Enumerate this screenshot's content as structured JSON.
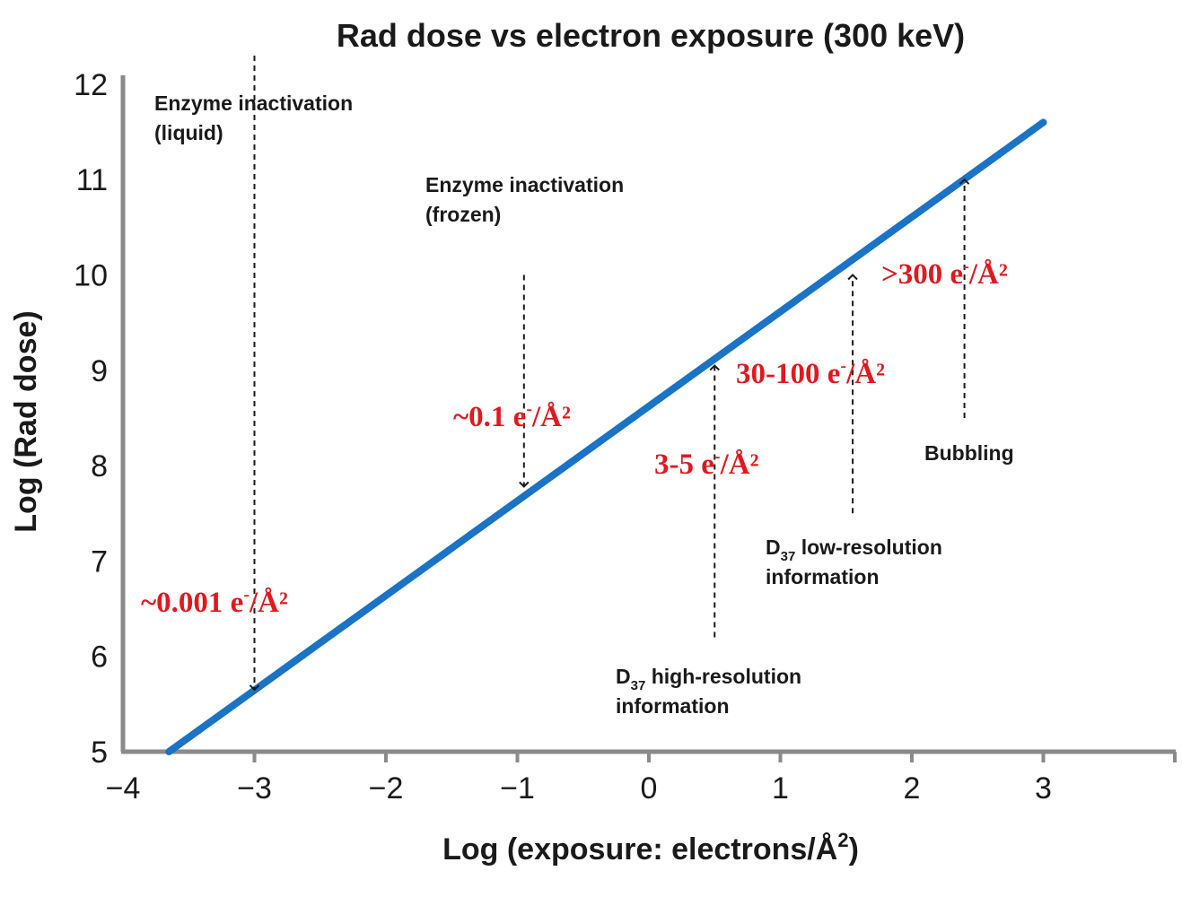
{
  "chart_data": {
    "type": "line",
    "title": "Rad dose vs electron exposure (300 keV)",
    "xlabel": "Log (exposure: electrons/Å",
    "xlabel_sup": "2",
    "xlabel_end": ")",
    "ylabel": "Log (Rad dose)",
    "xlim": [
      -4,
      4
    ],
    "ylim": [
      5,
      12
    ],
    "xticks": [
      -4,
      -3,
      -2,
      -1,
      0,
      1,
      2,
      3
    ],
    "xtick_labels": [
      "−4",
      "−3",
      "−2",
      "−1",
      "0",
      "1",
      "2",
      "3"
    ],
    "yticks": [
      5,
      6,
      7,
      8,
      9,
      10,
      11,
      12
    ],
    "ytick_labels": [
      "5",
      "6",
      "7",
      "8",
      "9",
      "10",
      "11",
      "12"
    ],
    "grid": false,
    "series": [
      {
        "x": [
          -3.65,
          3.0
        ],
        "y": [
          5.0,
          11.6
        ],
        "color": "#1a73c4"
      }
    ],
    "arrows": [
      {
        "x": -3.0,
        "y_from": 12.3,
        "y_to": 5.65
      },
      {
        "x": -0.95,
        "y_from": 10.0,
        "y_to": 7.78
      },
      {
        "x": 0.5,
        "y_from": 6.2,
        "y_to": 9.05
      },
      {
        "x": 1.55,
        "y_from": 7.5,
        "y_to": 10.0
      },
      {
        "x": 2.4,
        "y_from": 8.5,
        "y_to": 11.0
      }
    ],
    "annotations": {
      "enzyme_liquid": [
        "Enzyme inactivation",
        "(liquid)"
      ],
      "enzyme_frozen": [
        "Enzyme inactivation",
        "(frozen)"
      ],
      "bubbling": "Bubbling",
      "d37_low": {
        "d": "D",
        "sub": "37",
        "rest": " low-resolution",
        "line2": "information"
      },
      "d37_high": {
        "d": "D",
        "sub": "37",
        "rest": " high-resolution",
        "line2": "information"
      }
    },
    "dose_labels": [
      {
        "text": "~0.001 e",
        "sup": "-",
        "end": "/Å²"
      },
      {
        "text": "~0.1 e",
        "sup": "-",
        "end": "/Å²"
      },
      {
        "text": "3-5 e",
        "sup": "-",
        "end": "/Å²"
      },
      {
        "text": "30-100 e",
        "sup": "-",
        "end": "/Å²"
      },
      {
        "text": ">300 e",
        "sup": "-",
        "end": "/Å²"
      }
    ],
    "colors": {
      "line": "#1a73c4",
      "dose_label": "#e0191f",
      "text": "#1a1a1a"
    }
  }
}
